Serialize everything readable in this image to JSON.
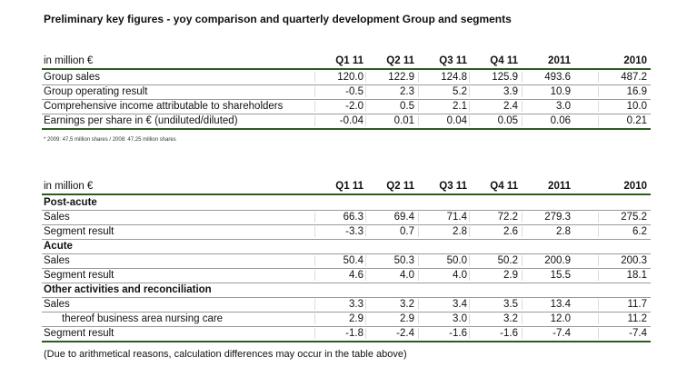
{
  "title": "Preliminary key figures - yoy comparison and quarterly development Group and segments",
  "table1": {
    "header": [
      "in million €",
      "Q1 11",
      "Q2 11",
      "Q3 11",
      "Q4 11",
      "2011",
      "2010"
    ],
    "rows": [
      [
        "Group sales",
        "120.0",
        "122.9",
        "124.8",
        "125.9",
        "493.6",
        "487.2"
      ],
      [
        "Group operating result",
        "-0.5",
        "2.3",
        "5.2",
        "3.9",
        "10.9",
        "16.9"
      ],
      [
        "Comprehensive income attributable to shareholders",
        "-2.0",
        "0.5",
        "2.1",
        "2.4",
        "3.0",
        "10.0"
      ],
      [
        "Earnings per share in € (undiluted/diluted)",
        "-0.04",
        "0.01",
        "0.04",
        "0.05",
        "0.06",
        "0.21"
      ]
    ]
  },
  "footnote": "* 2009: 47,5 million shares / 2008: 47,25 million shares",
  "table2": {
    "header": [
      "in million €",
      "Q1 11",
      "Q2 11",
      "Q3 11",
      "Q4 11",
      "2011",
      "2010"
    ],
    "rows": [
      [
        "Post-acute"
      ],
      [
        "Sales",
        "66.3",
        "69.4",
        "71.4",
        "72.2",
        "279.3",
        "275.2"
      ],
      [
        "Segment result",
        "-3.3",
        "0.7",
        "2.8",
        "2.6",
        "2.8",
        "6.2"
      ],
      [
        "Acute"
      ],
      [
        "Sales",
        "50.4",
        "50.3",
        "50.0",
        "50.2",
        "200.9",
        "200.3"
      ],
      [
        "Segment result",
        "4.6",
        "4.0",
        "4.0",
        "2.9",
        "15.5",
        "18.1"
      ],
      [
        "Other activities and reconciliation"
      ],
      [
        "Sales",
        "3.3",
        "3.2",
        "3.4",
        "3.5",
        "13.4",
        "11.7"
      ],
      [
        "thereof business area nursing care",
        "2.9",
        "2.9",
        "3.0",
        "3.2",
        "12.0",
        "11.2"
      ],
      [
        "Segment result",
        "-1.8",
        "-2.4",
        "-1.6",
        "-1.6",
        "-7.4",
        "-7.4"
      ]
    ]
  },
  "note": "(Due to arithmetical reasons, calculation differences may occur in the table above)"
}
